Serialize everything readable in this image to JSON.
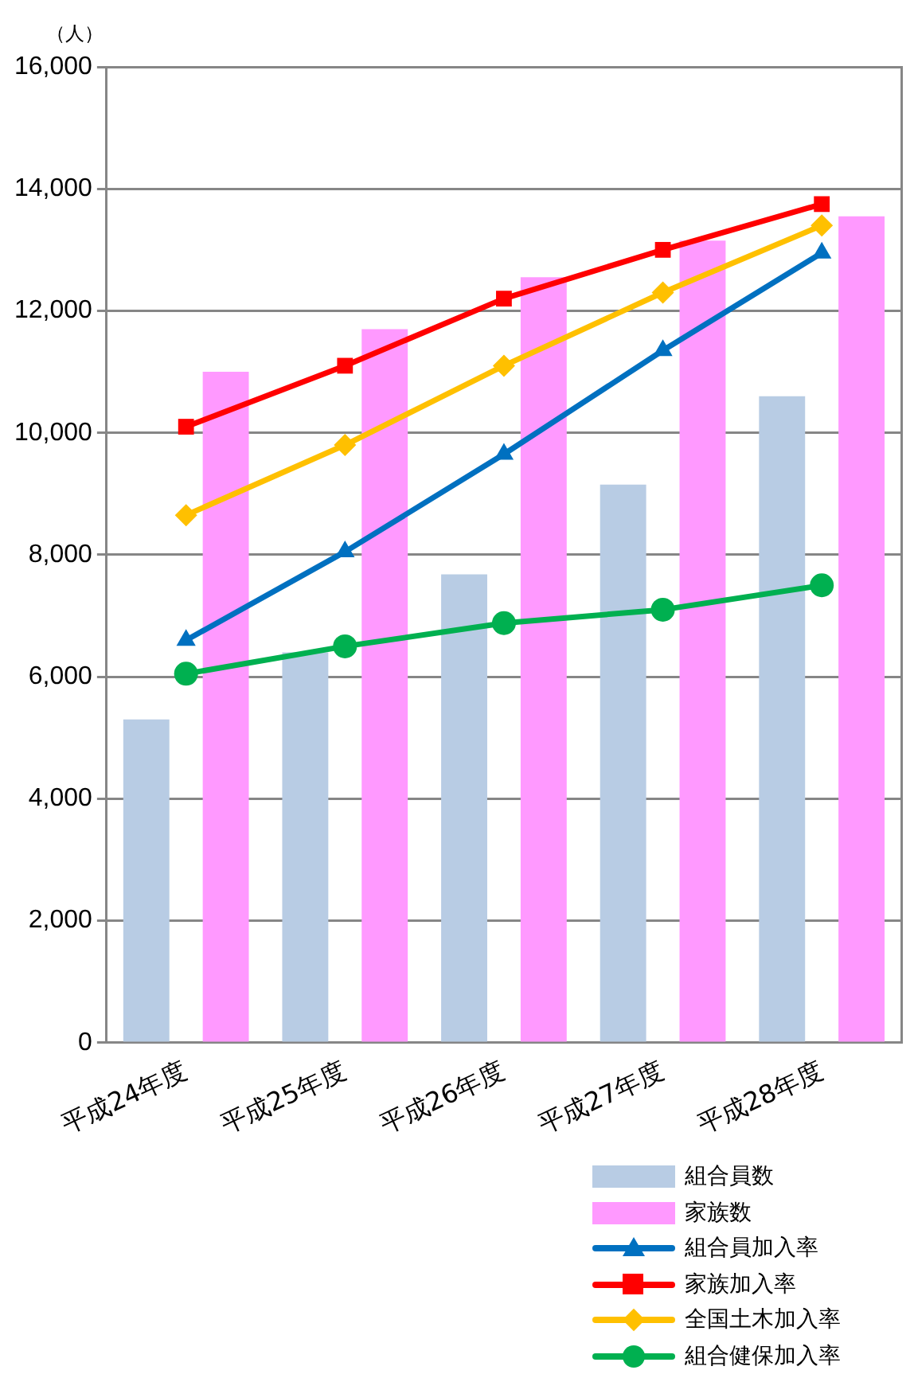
{
  "chart_data": {
    "type": "bar",
    "ylabel": "（人）",
    "categories": [
      "平成24年度",
      "平成25年度",
      "平成26年度",
      "平成27年度",
      "平成28年度"
    ],
    "ylim": [
      0,
      16000
    ],
    "yticks": [
      0,
      {
        "value": 2000,
        "label": "2,000"
      },
      {
        "value": 4000,
        "label": "4,000"
      },
      {
        "value": 6000,
        "label": "6,000"
      },
      {
        "value": 8000,
        "label": "8,000"
      },
      {
        "value": 10000,
        "label": "10,000"
      },
      {
        "value": 12000,
        "label": "12,000"
      },
      {
        "value": 14000,
        "label": "14,000"
      },
      {
        "value": 16000,
        "label": "16,000"
      }
    ],
    "grid": "y",
    "legend": "bottom right",
    "series": [
      {
        "name": "組合員数",
        "color": "#b8cce4",
        "values": [
          5300,
          6400,
          7680,
          9150,
          10600
        ]
      },
      {
        "name": "家族数",
        "color": "#ff99ff",
        "values": [
          11000,
          11700,
          12550,
          13150,
          13550
        ]
      },
      {
        "name": "組合員加入率",
        "type": "line",
        "color": "#0070c0",
        "marker": "triangle",
        "values": [
          6600,
          8050,
          9650,
          11350,
          12950
        ]
      },
      {
        "name": "家族加入率",
        "type": "line",
        "color": "#ff0000",
        "marker": "square",
        "values": [
          10100,
          11100,
          12200,
          13000,
          13750
        ]
      },
      {
        "name": "全国土木加入率",
        "type": "line",
        "color": "#ffc000",
        "marker": "diamond",
        "values": [
          8650,
          9800,
          11100,
          12300,
          13400
        ]
      },
      {
        "name": "組合健保加入率",
        "type": "line",
        "color": "#00b050",
        "marker": "circle",
        "values": [
          6050,
          6500,
          6880,
          7100,
          7500
        ]
      }
    ]
  }
}
